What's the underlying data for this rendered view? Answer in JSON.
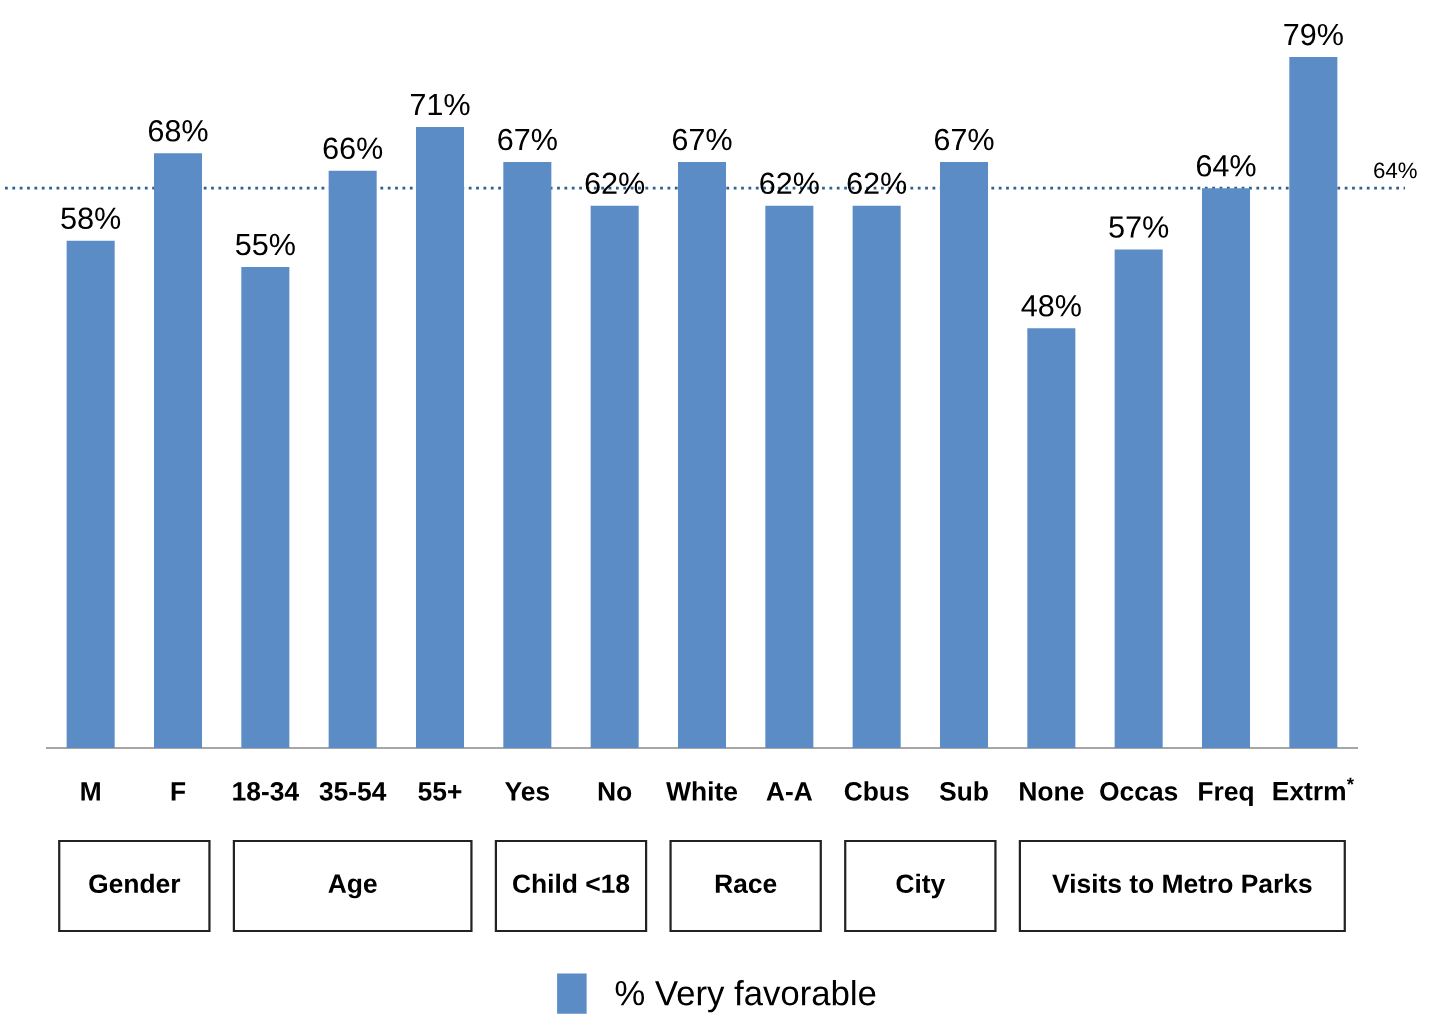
{
  "chart_data": {
    "type": "bar",
    "categories": [
      "M",
      "F",
      "18-34",
      "35-54",
      "55+",
      "Yes",
      "No",
      "White",
      "A-A",
      "Cbus",
      "Sub",
      "None",
      "Occas",
      "Freq",
      "Extrm$^{*}$"
    ],
    "series": [
      {
        "name": "% Very favorable",
        "color": "#5b8cc6",
        "values": [
          58,
          68,
          55,
          66,
          71,
          67,
          62,
          67,
          62,
          62,
          67,
          48,
          57,
          64,
          79
        ],
        "value_labels": [
          "58%",
          "68%",
          "55%",
          "66%",
          "71%",
          "67%",
          "62%",
          "67%",
          "62%",
          "62%",
          "67%",
          "48%",
          "57%",
          "64%",
          "79%"
        ]
      }
    ],
    "ref_lines": [
      {
        "axis": "y",
        "value": 64,
        "label": "64%",
        "color": "#2f5f8f",
        "line_style": "dotted"
      }
    ],
    "annotations": [
      "Gender",
      "Age",
      "Child <18",
      "Race",
      "City",
      "Visits to Metro Parks"
    ],
    "legend": "bottom"
  }
}
